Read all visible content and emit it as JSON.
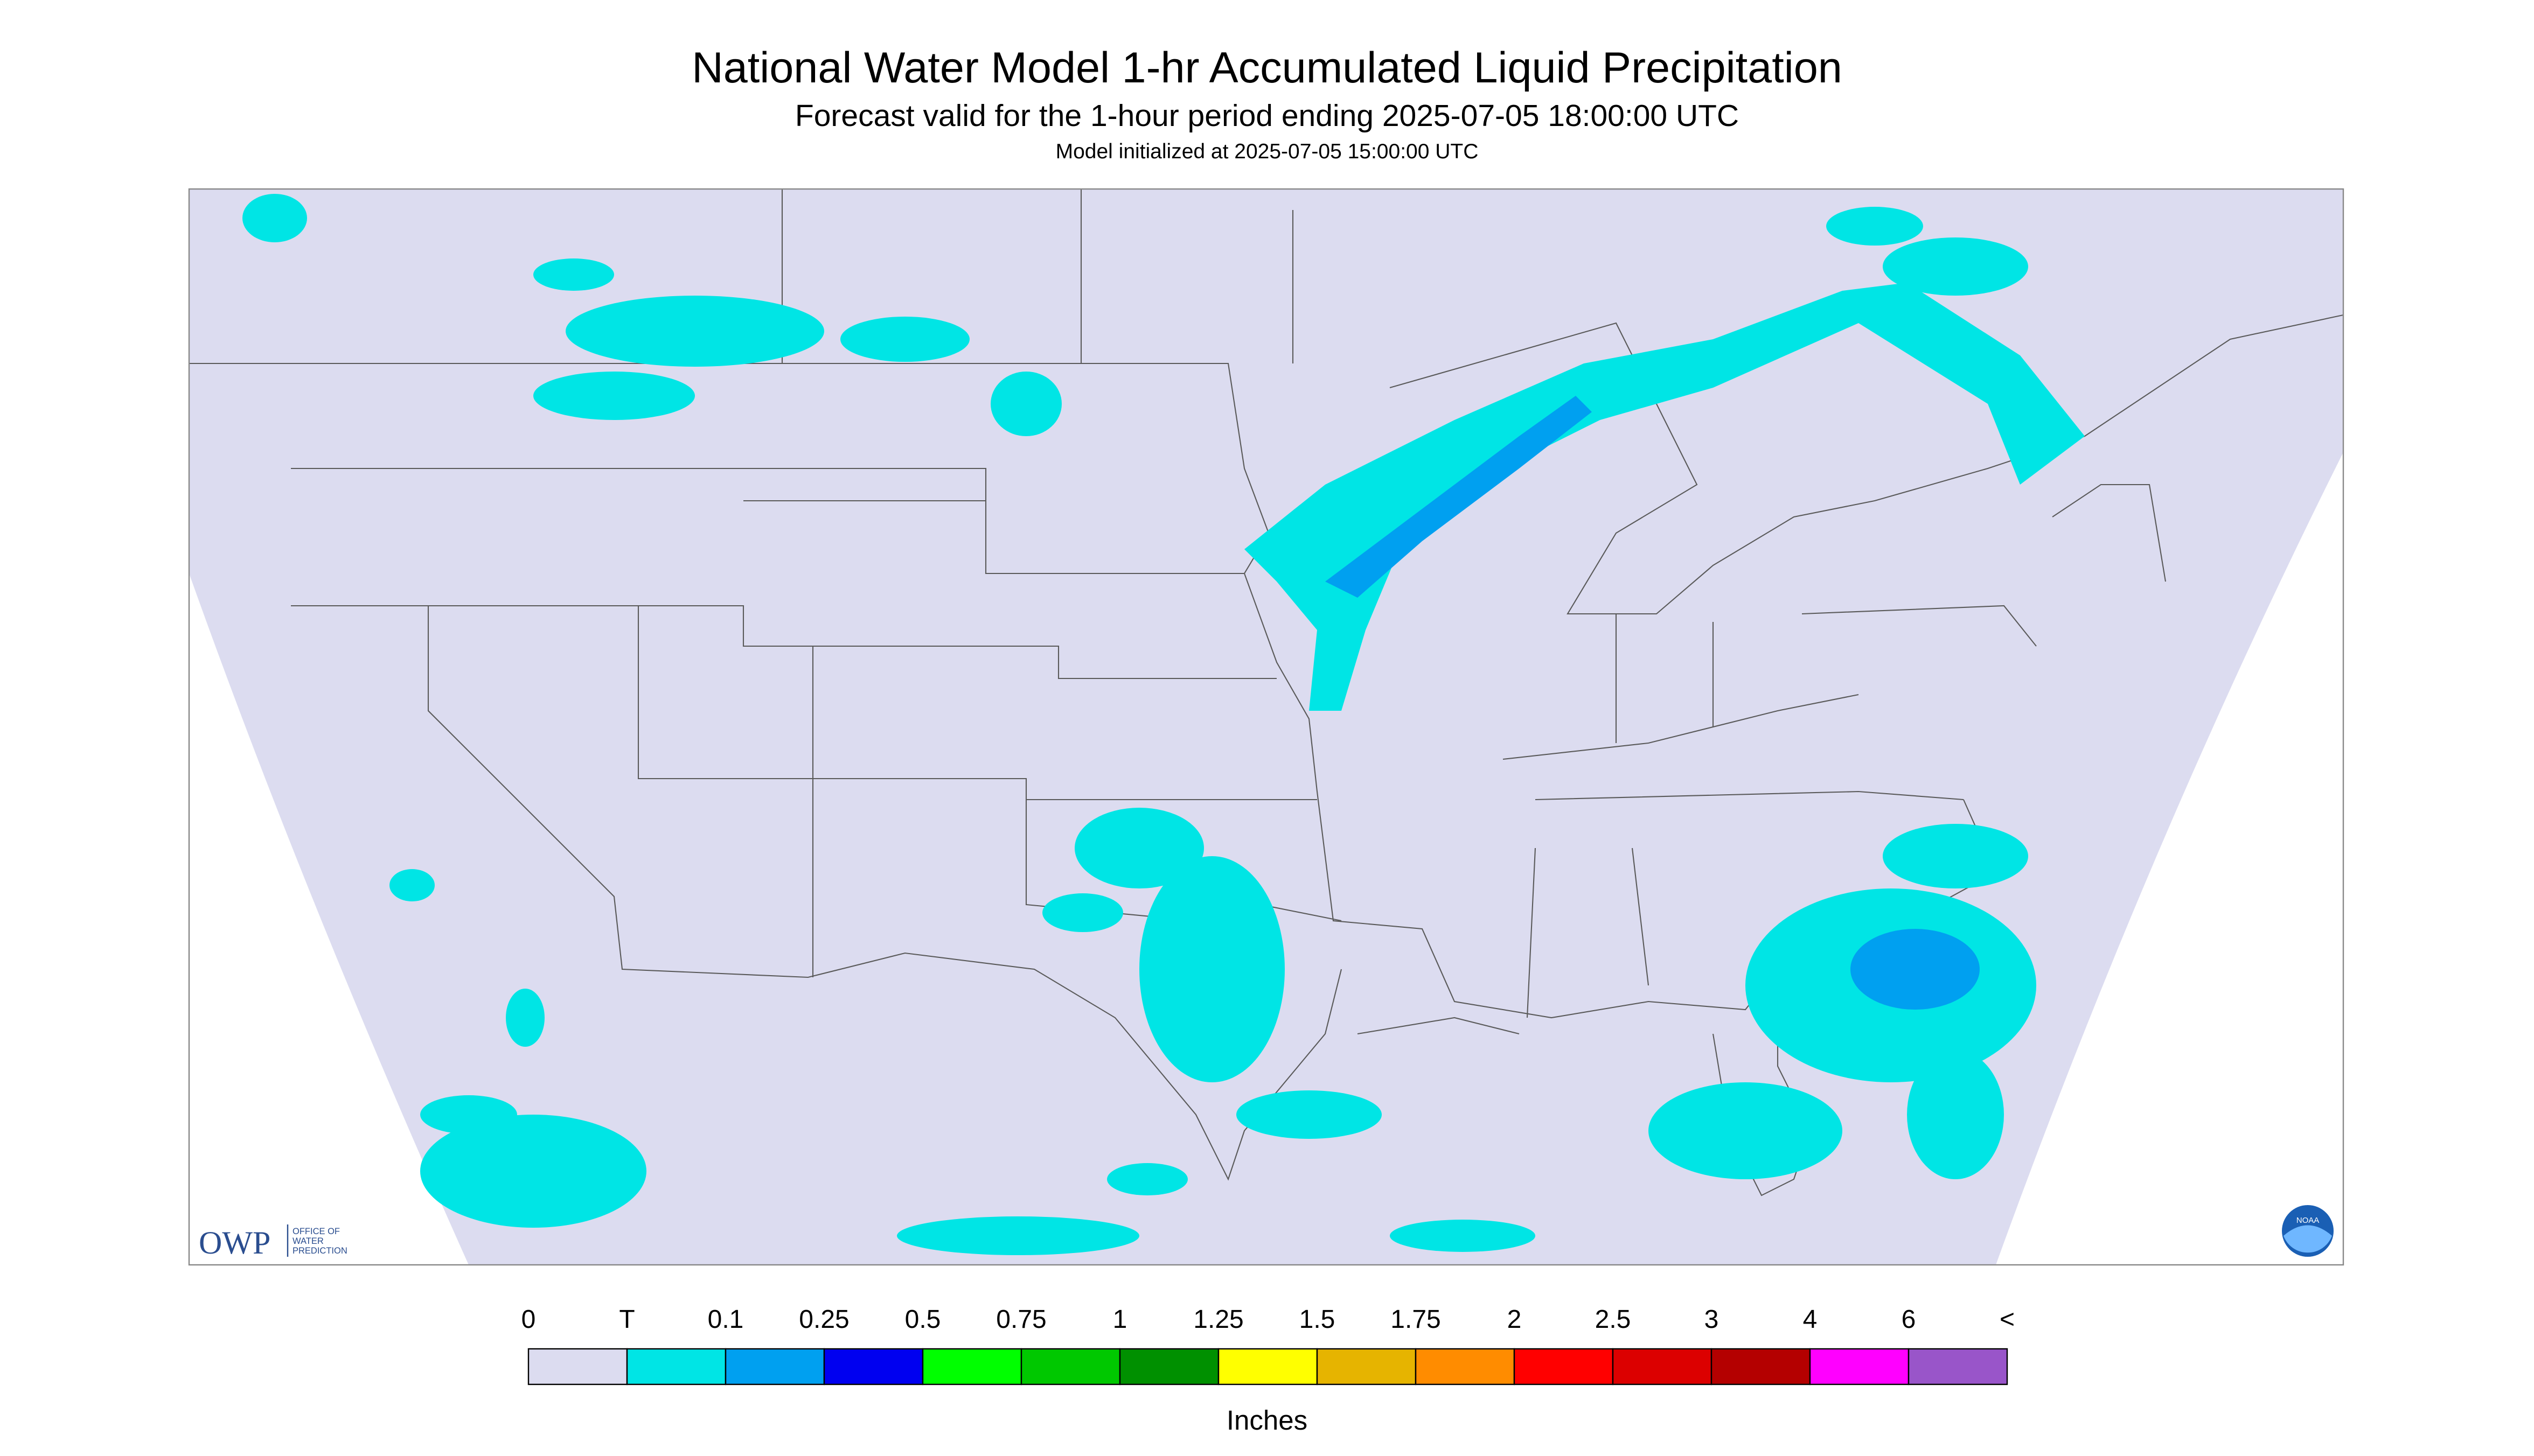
{
  "header": {
    "title": "National Water Model 1-hr Accumulated Liquid Precipitation",
    "subtitle": "Forecast valid for the 1-hour period ending 2025-07-05 18:00:00 UTC",
    "initialized": "Model initialized at 2025-07-05 15:00:00 UTC"
  },
  "legend": {
    "labels": [
      "0",
      "T",
      "0.1",
      "0.25",
      "0.5",
      "0.75",
      "1",
      "1.25",
      "1.5",
      "1.75",
      "2",
      "2.5",
      "3",
      "4",
      "6",
      "<"
    ],
    "colors": [
      "#dcdcf0",
      "#00e5e5",
      "#00a0f0",
      "#0000f0",
      "#00ff00",
      "#00c800",
      "#009000",
      "#ffff00",
      "#e6b400",
      "#ff8c00",
      "#ff0000",
      "#dc0000",
      "#b40000",
      "#ff00ff",
      "#9955c9"
    ],
    "unit": "Inches"
  },
  "logos": {
    "owp": "OWP",
    "owp_lines": [
      "OFFICE OF",
      "WATER",
      "PREDICTION"
    ],
    "noaa": "NOAA"
  }
}
